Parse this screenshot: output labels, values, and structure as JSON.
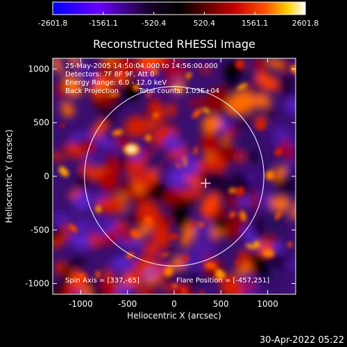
{
  "chart_data": {
    "type": "heatmap",
    "colorbar": {
      "ticks": [
        "-2601.8",
        "-1561.1",
        "-520.4",
        "520.4",
        "1561.1",
        "2601.8"
      ],
      "range": [
        -2601.8,
        2601.8
      ],
      "colormap": [
        "#0000ff",
        "#6a00ff",
        "#1a0028",
        "#000000",
        "#5a0000",
        "#c80000",
        "#ff5000",
        "#ffd000",
        "#ffffff"
      ]
    },
    "title": "Reconstructed RHESSI Image",
    "xlabel": "Heliocentric X (arcsec)",
    "ylabel": "Heliocentric Y (arcsec)",
    "xlim": [
      -1300,
      1300
    ],
    "ylim": [
      -1100,
      1100
    ],
    "xticks": [
      "-1000",
      "-500",
      "0",
      "500",
      "1000"
    ],
    "yticks": [
      "-1000",
      "-500",
      "0",
      "500",
      "1000"
    ],
    "xtick_values": [
      -1000,
      -500,
      0,
      500,
      1000
    ],
    "ytick_values": [
      -1000,
      -500,
      0,
      500,
      1000
    ],
    "annotations": [
      "25-May-2005 14:50:04.000 to 14:56:00.000",
      "Detectors: 7F 8F 9F, Att 0",
      "Energy Range: 6.0 - 12.0 keV",
      "Back Projection",
      "Total counts: 1.03E+04"
    ],
    "spin_axis": "Spin Axis = [337,-65]",
    "flare_position_label": "Flare Position = [-457,251]",
    "solar_limb": {
      "center": [
        0,
        0
      ],
      "radius": 960
    },
    "flare_marker": [
      337,
      -65
    ],
    "bright_source": {
      "x": -457,
      "y": 251
    },
    "timestamp": "30-Apr-2022 05:22"
  }
}
